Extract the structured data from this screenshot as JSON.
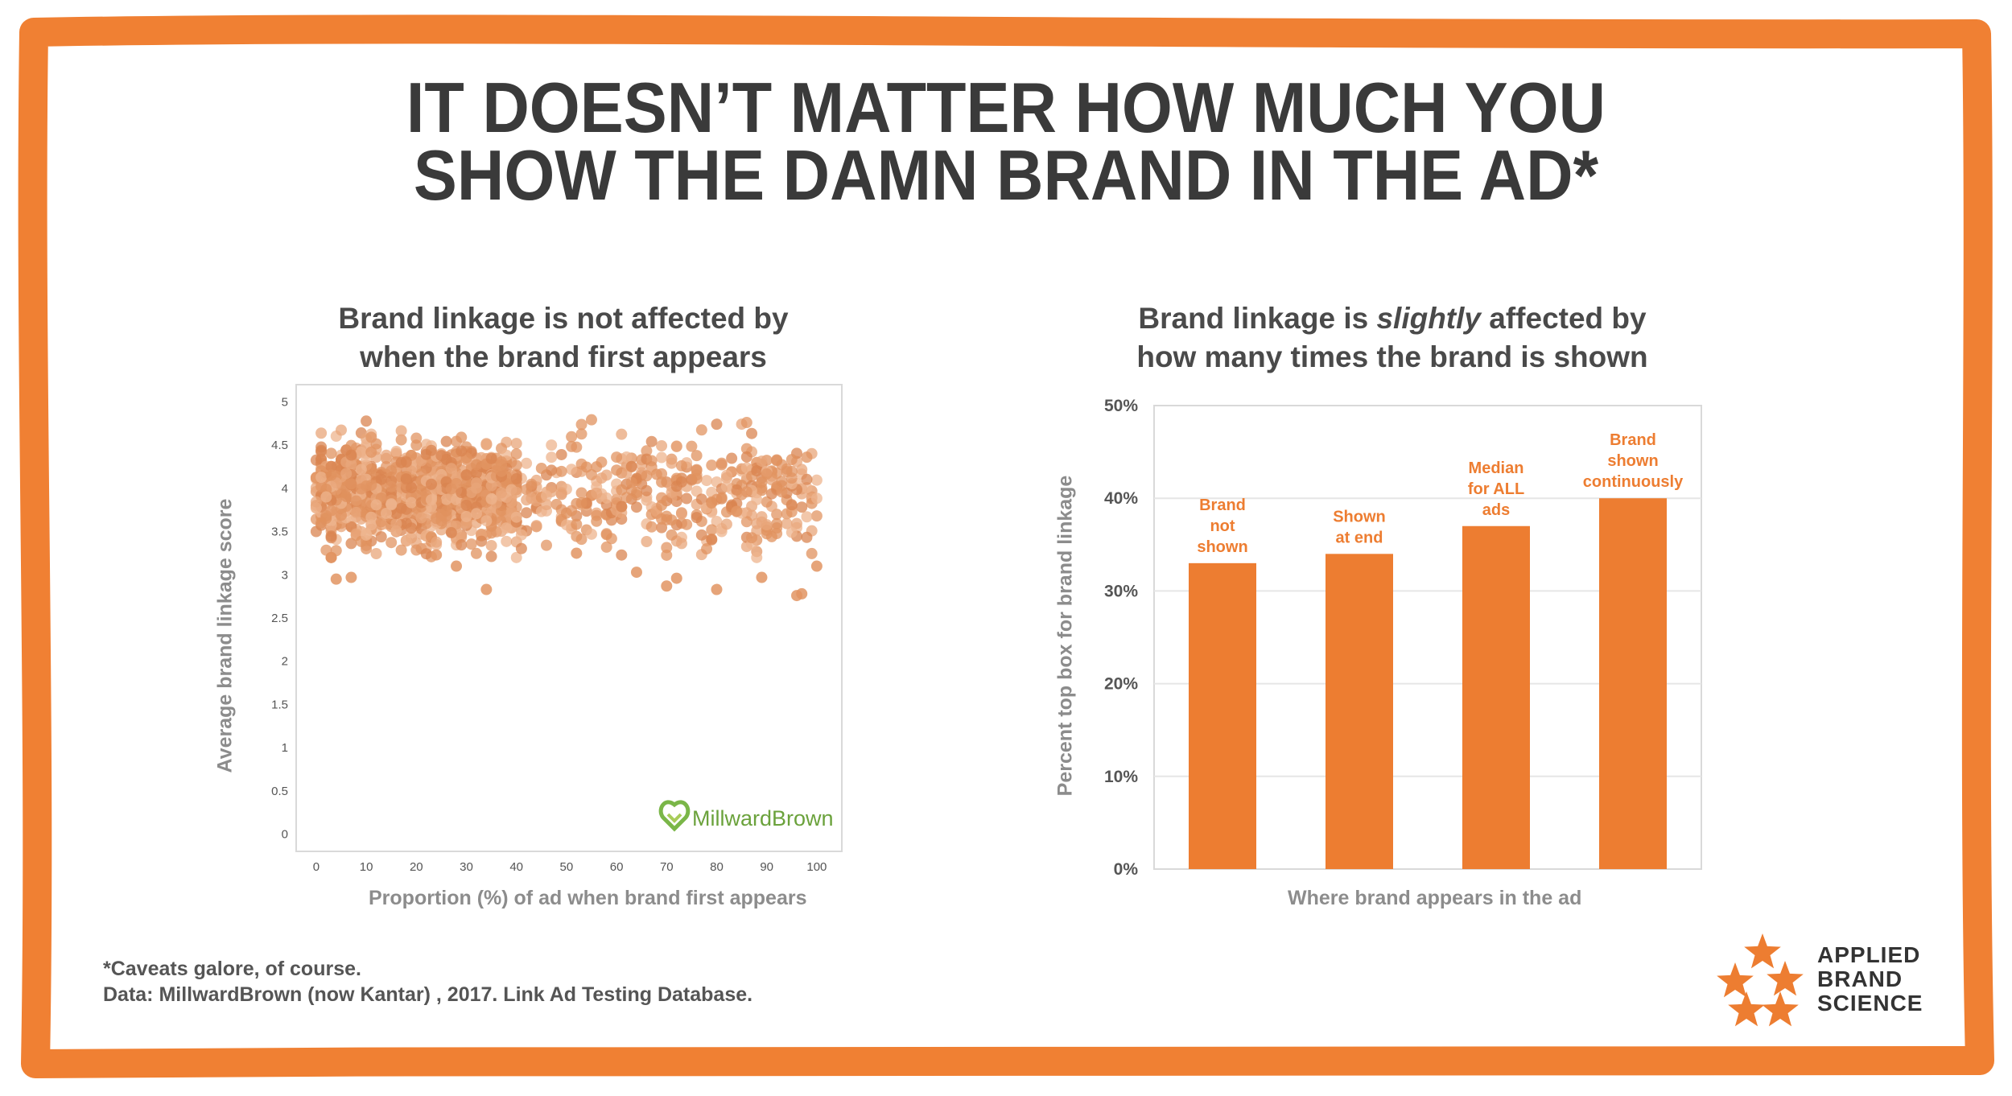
{
  "headline": {
    "line1": "IT DOESN’T MATTER HOW MUCH YOU",
    "line2": "SHOW THE DAMN BRAND IN THE AD*"
  },
  "colors": {
    "frame": "#F08033",
    "bar": "#ED7D31",
    "bar_label": "#ED7D31",
    "scatter_dot": "#E29462",
    "headline": "#3A3A3A",
    "millward_green": "#7AB648"
  },
  "left_chart": {
    "title_line1": "Brand linkage is not affected by",
    "title_line2": "when the brand first appears",
    "watermark": "MillwardBrown"
  },
  "right_chart": {
    "title_pre": "Brand linkage is ",
    "title_em": "slightly",
    "title_post": " affected by",
    "title_line2": "how many times the brand is shown"
  },
  "chart_data": [
    {
      "type": "scatter",
      "title": "Brand linkage is not affected by when the brand first appears",
      "xlabel": "Proportion (%) of ad when brand first appears",
      "ylabel": "Average brand linkage score",
      "xlim": [
        -4,
        105
      ],
      "ylim": [
        -0.2,
        5.2
      ],
      "xticks": [
        0,
        10,
        20,
        30,
        40,
        50,
        60,
        70,
        80,
        90,
        100
      ],
      "yticks": [
        0,
        0.5,
        1,
        1.5,
        2,
        2.5,
        3,
        3.5,
        4,
        4.5,
        5
      ],
      "ytick_labels": [
        "0",
        "0.5",
        "1",
        "1.5",
        "2",
        "2.5",
        "3",
        "3.5",
        "4",
        "4.5",
        "5"
      ],
      "y_range_bulk": [
        3.2,
        4.8
      ],
      "y_center": 3.95,
      "point_count_approx": 1400,
      "outliers": [
        {
          "x": 4,
          "y": 2.95
        },
        {
          "x": 7,
          "y": 2.97
        },
        {
          "x": 34,
          "y": 2.83
        },
        {
          "x": 80,
          "y": 2.83
        },
        {
          "x": 70,
          "y": 2.87
        },
        {
          "x": 96,
          "y": 2.76
        },
        {
          "x": 97,
          "y": 2.78
        },
        {
          "x": 89,
          "y": 2.97
        },
        {
          "x": 72,
          "y": 2.96
        },
        {
          "x": 3,
          "y": 3.2
        },
        {
          "x": 24,
          "y": 3.23
        },
        {
          "x": 64,
          "y": 3.03
        },
        {
          "x": 100,
          "y": 3.1
        },
        {
          "x": 52,
          "y": 3.25
        },
        {
          "x": 28,
          "y": 3.1
        }
      ]
    },
    {
      "type": "bar",
      "title": "Brand linkage is slightly affected by how many times the brand is shown",
      "xlabel": "Where brand appears in the ad",
      "ylabel": "Percent top box for brand linkage",
      "categories": [
        "Brand not shown",
        "Shown at end",
        "Median for ALL ads",
        "Brand shown continuously"
      ],
      "values": [
        33,
        34,
        37,
        40
      ],
      "data_labels": [
        [
          "Brand",
          "not",
          "shown"
        ],
        [
          "Shown",
          "at end"
        ],
        [
          "Median",
          "for ALL",
          "ads"
        ],
        [
          "Brand",
          "shown",
          "continuously"
        ]
      ],
      "ylim": [
        0,
        50
      ],
      "yticks": [
        0,
        10,
        20,
        30,
        40,
        50
      ],
      "ytick_labels": [
        "0%",
        "10%",
        "20%",
        "30%",
        "40%",
        "50%"
      ],
      "grid": true
    }
  ],
  "footer": {
    "line1": "*Caveats galore, of course.",
    "line2": "Data: MillwardBrown (now Kantar) , 2017. Link Ad Testing Database."
  },
  "logo": {
    "line1": "APPLIED",
    "line2": "BRAND",
    "line3": "SCIENCE"
  }
}
